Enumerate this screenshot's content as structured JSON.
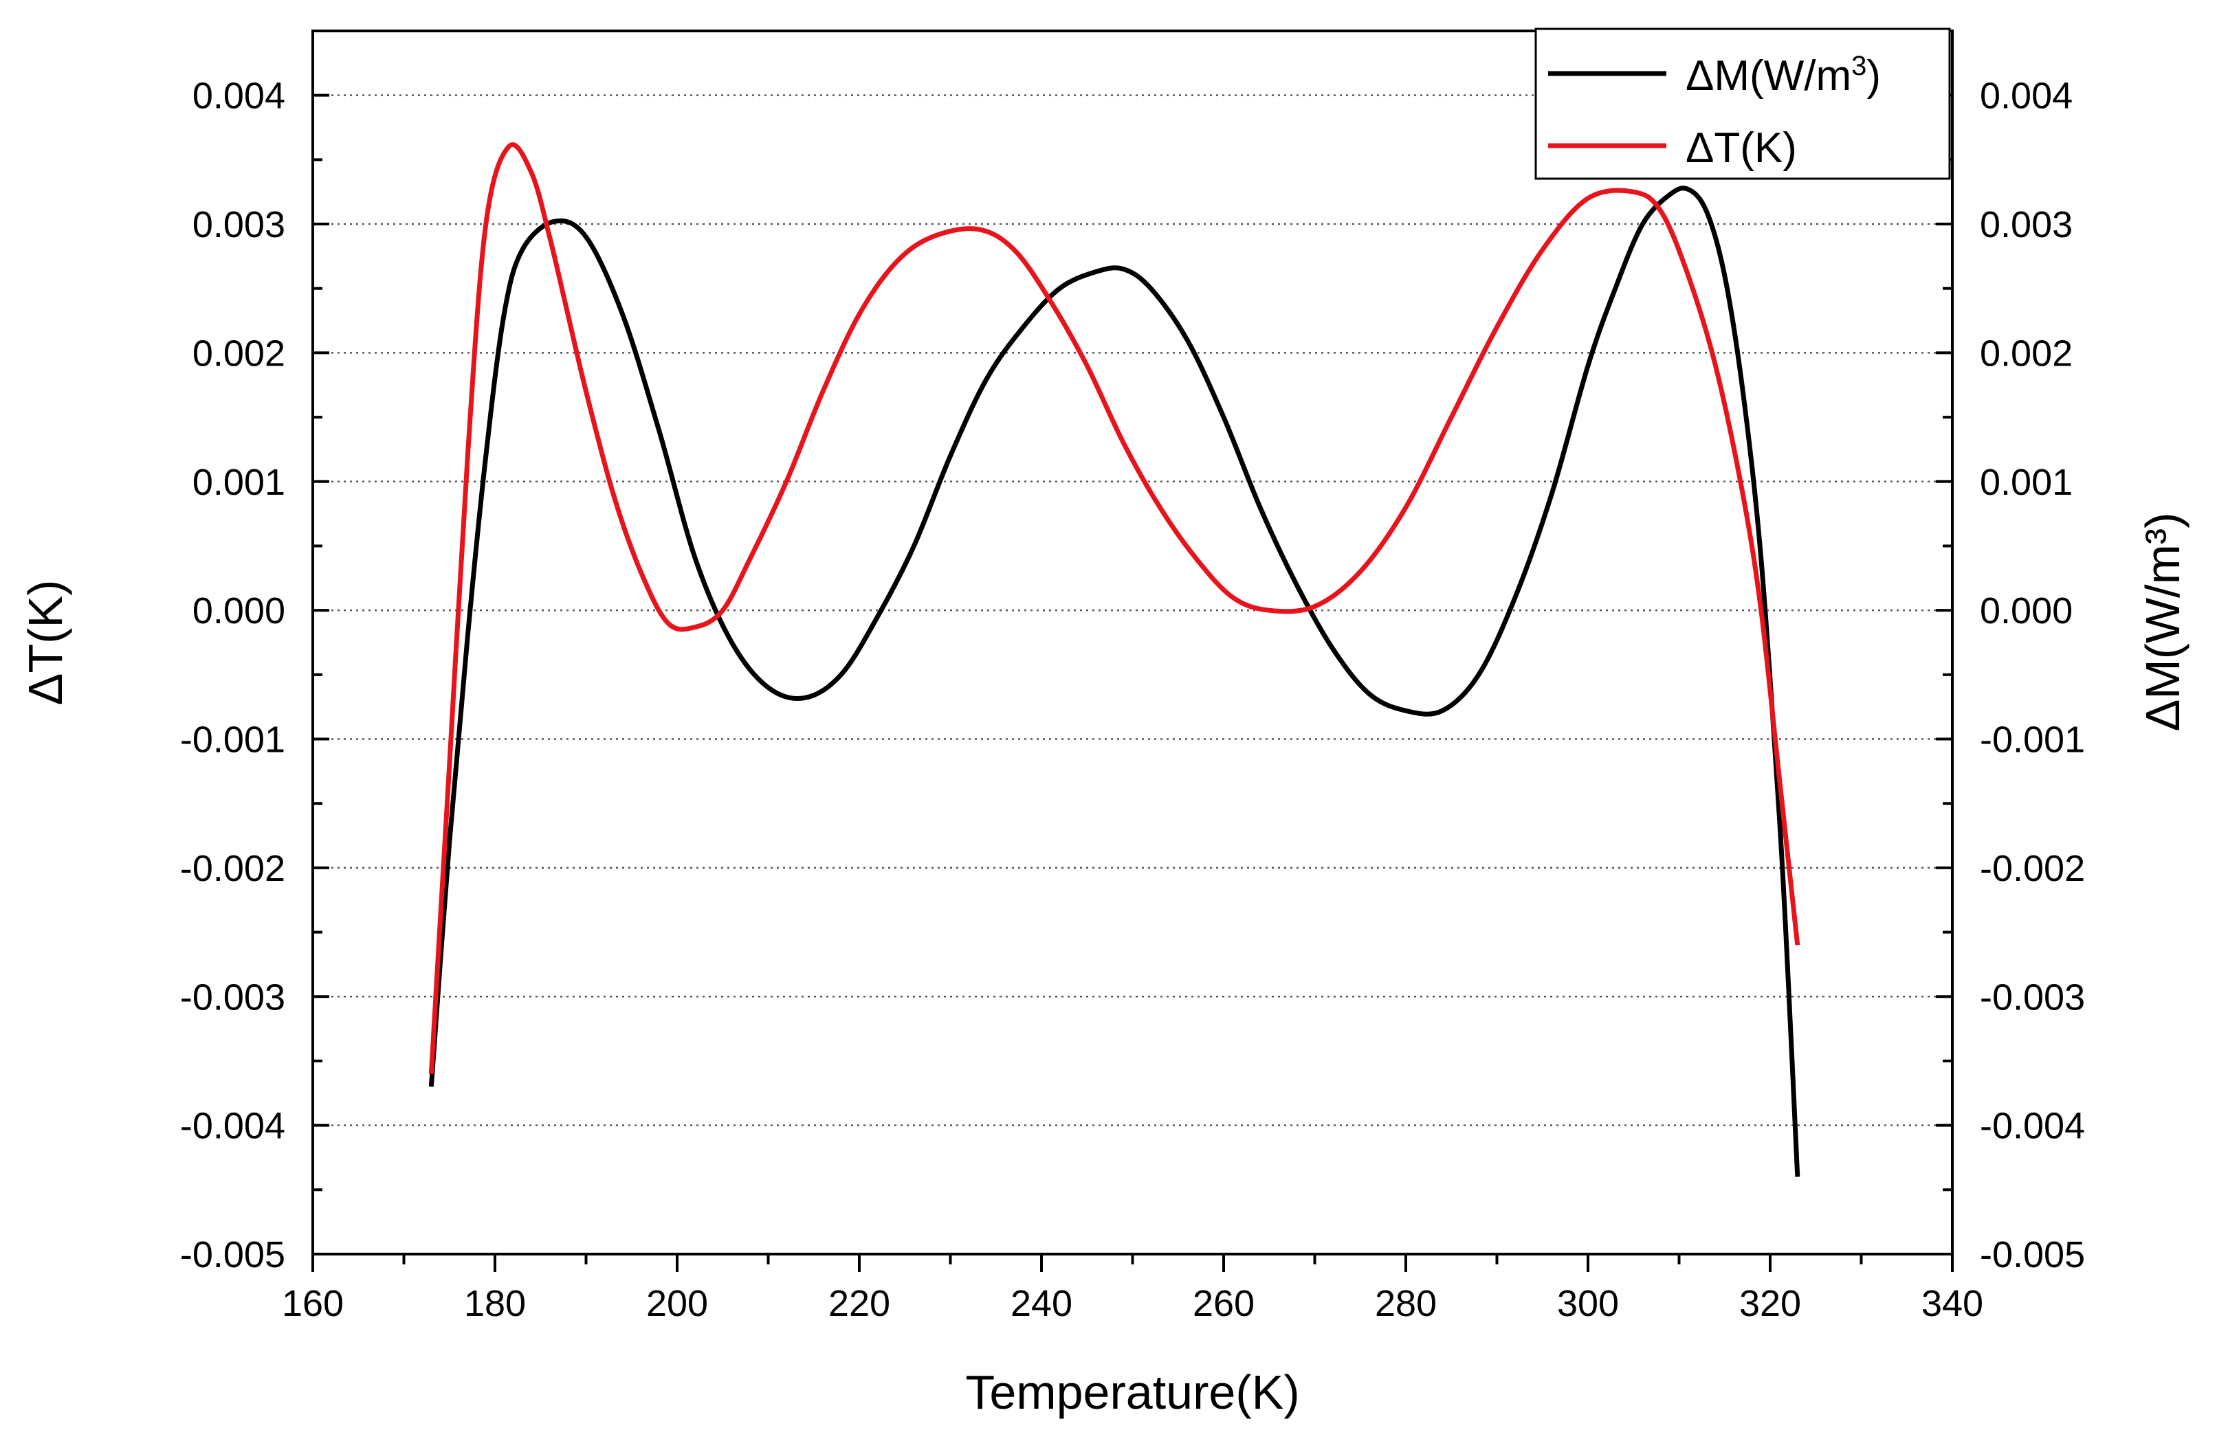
{
  "chart_data": {
    "type": "line",
    "xlabel": "Temperature(K)",
    "ylabel_left": "ΔT(K)",
    "ylabel_right": "ΔM(W/m³)",
    "xlim": [
      160,
      340
    ],
    "ylim": [
      -0.005,
      0.0045
    ],
    "ylim_right": [
      -0.005,
      0.0045
    ],
    "x_ticks": [
      160,
      180,
      200,
      220,
      240,
      260,
      280,
      300,
      320,
      340
    ],
    "x_tick_labels": [
      "160",
      "180",
      "200",
      "220",
      "240",
      "260",
      "280",
      "300",
      "320",
      "340"
    ],
    "y_ticks": [
      -0.005,
      -0.004,
      -0.003,
      -0.002,
      -0.001,
      0.0,
      0.001,
      0.002,
      0.003,
      0.004
    ],
    "y_tick_labels": [
      "-0.005",
      "-0.004",
      "-0.003",
      "-0.002",
      "-0.001",
      "0.000",
      "0.001",
      "0.002",
      "0.003",
      "0.004"
    ],
    "grid": "horizontal dotted",
    "legend_position": "top-right",
    "legend": [
      {
        "base": "ΔM(W/m",
        "sup": "3",
        "tail": ")",
        "color": "#000000"
      },
      {
        "base": "ΔT(K)",
        "sup": "",
        "tail": "",
        "color": "#e8141c"
      }
    ],
    "series": [
      {
        "name": "ΔM(W/m3)",
        "axis": "right",
        "color": "#000000",
        "x": [
          173,
          175,
          177,
          179,
          181,
          183,
          186.5,
          190,
          194,
          198,
          202,
          206,
          210,
          214,
          218,
          222,
          226,
          230,
          234,
          238,
          242,
          246,
          249,
          252,
          256,
          260,
          264,
          268,
          272,
          276,
          280,
          284,
          288,
          292,
          296,
          300,
          303,
          306,
          309,
          311,
          313,
          315,
          317,
          319,
          321,
          322,
          323
        ],
        "values": [
          -0.0037,
          -0.0018,
          -0.0002,
          0.0012,
          0.0023,
          0.0028,
          0.00302,
          0.0029,
          0.0023,
          0.0014,
          0.0004,
          -0.00025,
          -0.0006,
          -0.00068,
          -0.0005,
          -5e-05,
          0.0005,
          0.0012,
          0.0018,
          0.0022,
          0.0025,
          0.00263,
          0.00265,
          0.0025,
          0.0021,
          0.0015,
          0.0008,
          0.0002,
          -0.0003,
          -0.00065,
          -0.00078,
          -0.00078,
          -0.0005,
          0.0001,
          0.0009,
          0.0019,
          0.0025,
          0.003,
          0.00323,
          0.00327,
          0.0031,
          0.0026,
          0.0017,
          0.0004,
          -0.0016,
          -0.0029,
          -0.0044
        ]
      },
      {
        "name": "ΔT(K)",
        "axis": "left",
        "color": "#e8141c",
        "x": [
          173,
          175,
          177,
          179,
          181.5,
          184,
          186,
          188,
          190,
          193,
          196,
          199,
          202,
          205,
          208,
          212,
          216,
          220,
          224,
          228,
          233,
          237,
          241,
          245,
          249,
          253,
          257,
          261,
          265,
          270,
          275,
          280,
          285,
          290,
          295,
          300,
          305,
          308,
          311,
          314,
          317,
          319,
          321,
          323
        ],
        "values": [
          -0.0036,
          -0.0012,
          0.0012,
          0.003,
          0.0036,
          0.0034,
          0.0029,
          0.0023,
          0.0017,
          0.0009,
          0.0003,
          -0.0001,
          -0.00013,
          0.0,
          0.0004,
          0.001,
          0.0017,
          0.0023,
          0.0027,
          0.0029,
          0.00296,
          0.0028,
          0.0024,
          0.0019,
          0.0013,
          0.0008,
          0.0004,
          0.0001,
          0.0,
          3e-05,
          0.0003,
          0.0008,
          0.0015,
          0.0022,
          0.0028,
          0.0032,
          0.00325,
          0.0031,
          0.0026,
          0.0019,
          0.0009,
          0.0,
          -0.0013,
          -0.0026
        ]
      }
    ]
  }
}
